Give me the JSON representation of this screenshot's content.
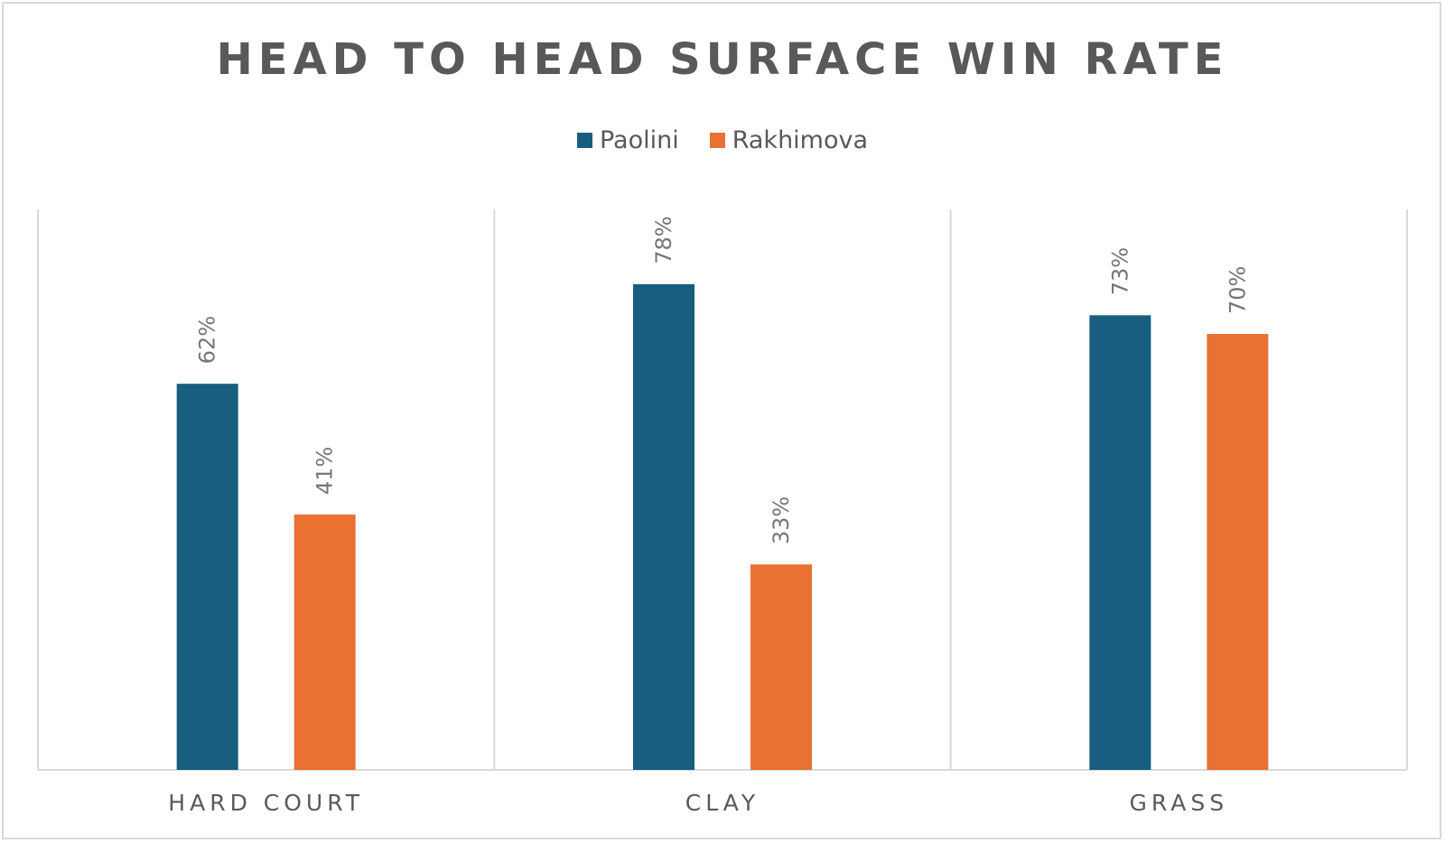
{
  "chart_data": {
    "type": "bar",
    "title": "HEAD TO HEAD SURFACE WIN RATE",
    "categories": [
      "HARD COURT",
      "CLAY",
      "GRASS"
    ],
    "series": [
      {
        "name": "Paolini",
        "values": [
          62,
          78,
          73
        ],
        "color": "#175e80"
      },
      {
        "name": "Rakhimova",
        "values": [
          41,
          33,
          70
        ],
        "color": "#e97132"
      }
    ],
    "value_suffix": "%",
    "ylim": [
      0,
      90
    ],
    "grid": false,
    "legend": "top-center",
    "data_labels": "rotated-vertical"
  }
}
